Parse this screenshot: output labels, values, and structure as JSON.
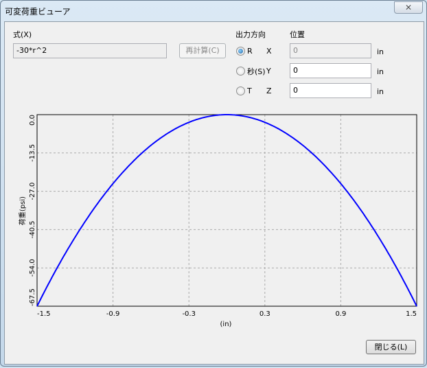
{
  "window": {
    "title": "可変荷重ビューア",
    "close_icon": "close-x-icon"
  },
  "formula": {
    "label": "式(X)",
    "value": "-30*r^2",
    "recalc_label": "再計算(C)"
  },
  "direction": {
    "label": "出力方向",
    "options": [
      {
        "label": "R",
        "selected": true
      },
      {
        "label": "秒(S)",
        "selected": false
      },
      {
        "label": "T",
        "selected": false
      }
    ]
  },
  "position": {
    "label": "位置",
    "rows": [
      {
        "axis": "X",
        "value": "0",
        "unit": "in",
        "disabled": true
      },
      {
        "axis": "Y",
        "value": "0",
        "unit": "in",
        "disabled": false
      },
      {
        "axis": "Z",
        "value": "0",
        "unit": "in",
        "disabled": false
      }
    ]
  },
  "chart_data": {
    "type": "line",
    "xlabel": "(in)",
    "ylabel": "荷重(psi)",
    "xlim": [
      -1.5,
      1.5
    ],
    "ylim": [
      -67.5,
      0
    ],
    "xticks": [
      "-1.5",
      "-0.9",
      "-0.3",
      "0.3",
      "0.9",
      "1.5"
    ],
    "yticks": [
      "0.0",
      "-13.5",
      "-27.0",
      "-40.5",
      "-54.0",
      "-67.5"
    ],
    "grid": true,
    "series": [
      {
        "expression": "-30*r^2",
        "color": "#0000ff"
      }
    ]
  },
  "footer": {
    "close_label": "閉じる(L)"
  }
}
